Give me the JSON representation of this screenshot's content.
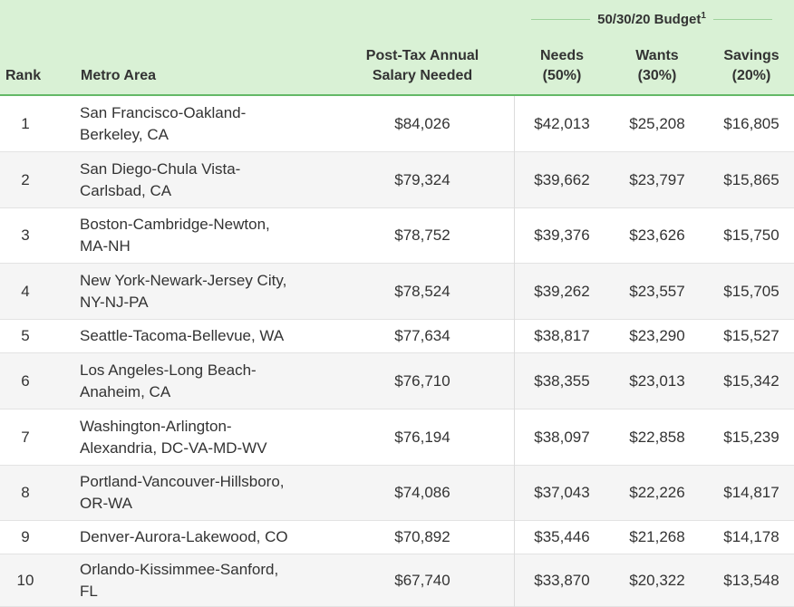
{
  "header": {
    "budget_title": "50/30/20 Budget",
    "budget_footnote": "1",
    "rank": "Rank",
    "metro": "Metro Area",
    "salary_line1": "Post-Tax Annual",
    "salary_line2": "Salary Needed",
    "needs_line1": "Needs",
    "needs_line2": "(50%)",
    "wants_line1": "Wants",
    "wants_line2": "(30%)",
    "savings_line1": "Savings",
    "savings_line2": "(20%)"
  },
  "colors": {
    "header_bg": "#d9f1d5",
    "header_border": "#63b866",
    "row_alt": "#f5f5f5"
  },
  "rows": [
    {
      "rank": "1",
      "metro1": "San Francisco-Oakland-",
      "metro2": "Berkeley, CA",
      "salary": "$84,026",
      "needs": "$42,013",
      "wants": "$25,208",
      "savings": "$16,805"
    },
    {
      "rank": "2",
      "metro1": "San Diego-Chula Vista-",
      "metro2": "Carlsbad, CA",
      "salary": "$79,324",
      "needs": "$39,662",
      "wants": "$23,797",
      "savings": "$15,865"
    },
    {
      "rank": "3",
      "metro1": "Boston-Cambridge-Newton,",
      "metro2": "MA-NH",
      "salary": "$78,752",
      "needs": "$39,376",
      "wants": "$23,626",
      "savings": "$15,750"
    },
    {
      "rank": "4",
      "metro1": "New York-Newark-Jersey City,",
      "metro2": "NY-NJ-PA",
      "salary": "$78,524",
      "needs": "$39,262",
      "wants": "$23,557",
      "savings": "$15,705"
    },
    {
      "rank": "5",
      "metro1": "Seattle-Tacoma-Bellevue, WA",
      "metro2": "",
      "salary": "$77,634",
      "needs": "$38,817",
      "wants": "$23,290",
      "savings": "$15,527"
    },
    {
      "rank": "6",
      "metro1": "Los Angeles-Long Beach-",
      "metro2": "Anaheim, CA",
      "salary": "$76,710",
      "needs": "$38,355",
      "wants": "$23,013",
      "savings": "$15,342"
    },
    {
      "rank": "7",
      "metro1": "Washington-Arlington-",
      "metro2": "Alexandria, DC-VA-MD-WV",
      "salary": "$76,194",
      "needs": "$38,097",
      "wants": "$22,858",
      "savings": "$15,239"
    },
    {
      "rank": "8",
      "metro1": "Portland-Vancouver-Hillsboro,",
      "metro2": "OR-WA",
      "salary": "$74,086",
      "needs": "$37,043",
      "wants": "$22,226",
      "savings": "$14,817"
    },
    {
      "rank": "9",
      "metro1": "Denver-Aurora-Lakewood, CO",
      "metro2": "",
      "salary": "$70,892",
      "needs": "$35,446",
      "wants": "$21,268",
      "savings": "$14,178"
    },
    {
      "rank": "10",
      "metro1": "Orlando-Kissimmee-Sanford,",
      "metro2": "FL",
      "salary": "$67,740",
      "needs": "$33,870",
      "wants": "$20,322",
      "savings": "$13,548"
    }
  ]
}
